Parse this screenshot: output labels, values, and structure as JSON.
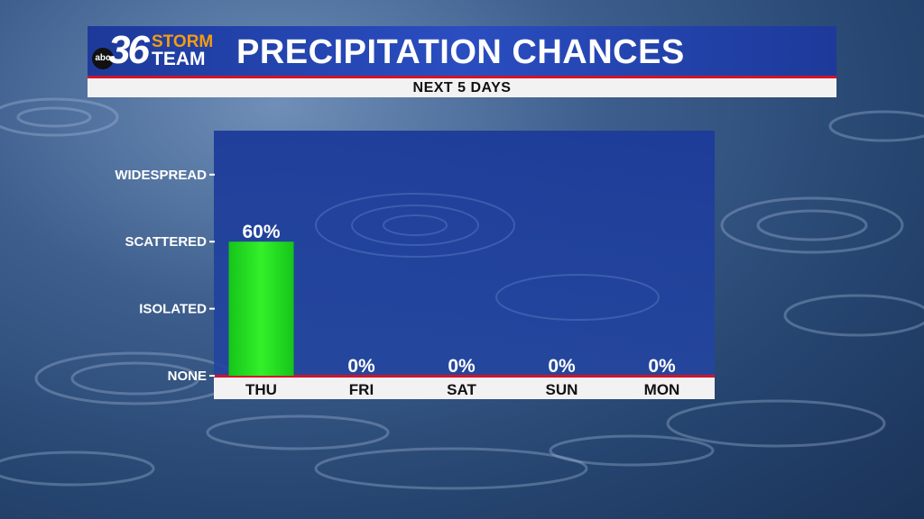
{
  "header": {
    "logo": {
      "network": "abc",
      "number": "36",
      "line1": "STORM",
      "line2": "TEAM"
    },
    "title": "PRECIPITATION CHANCES",
    "subtitle": "NEXT 5 DAYS"
  },
  "colors": {
    "header_blue": "#2a4dc0",
    "plot_blue": "#1f3f9e",
    "bar_green": "#22e01e",
    "accent_red": "#d0142a"
  },
  "chart_data": {
    "type": "bar",
    "categories": [
      "THU",
      "FRI",
      "SAT",
      "SUN",
      "MON"
    ],
    "values": [
      60,
      0,
      0,
      0,
      0
    ],
    "data_labels": [
      "60%",
      "0%",
      "0%",
      "0%",
      "0%"
    ],
    "y_ticks": [
      {
        "label": "NONE",
        "value": 0
      },
      {
        "label": "ISOLATED",
        "value": 30
      },
      {
        "label": "SCATTERED",
        "value": 60
      },
      {
        "label": "WIDESPREAD",
        "value": 90
      }
    ],
    "ylim": [
      0,
      100
    ],
    "grid": false,
    "legend": "none"
  }
}
